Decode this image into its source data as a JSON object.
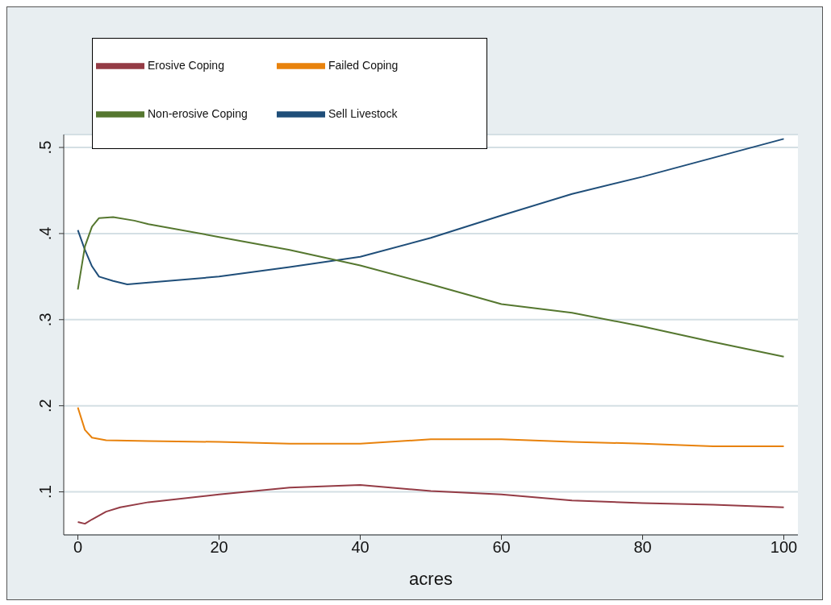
{
  "chart_data": {
    "type": "line",
    "xlabel": "acres",
    "xlim": [
      -2,
      102
    ],
    "xticks": [
      0,
      20,
      40,
      60,
      80,
      100
    ],
    "ylim": [
      0.05,
      0.515
    ],
    "yticks": [
      {
        "value": 0.1,
        "label": ".1"
      },
      {
        "value": 0.2,
        "label": ".2"
      },
      {
        "value": 0.3,
        "label": ".3"
      },
      {
        "value": 0.4,
        "label": ".4"
      },
      {
        "value": 0.5,
        "label": ".5"
      }
    ],
    "grid": "y",
    "legend": "top left",
    "x": [
      0,
      1,
      2,
      3,
      5,
      7,
      10,
      20,
      30,
      40,
      50,
      60,
      70,
      80,
      90,
      100
    ],
    "series": [
      {
        "name": "Sell Livestock",
        "color": "#1f4e79",
        "values": [
          0.404,
          0.381,
          0.362,
          0.35,
          0.345,
          0.341,
          0.343,
          0.35,
          0.361,
          0.373,
          0.395,
          0.421,
          0.446,
          0.466,
          0.488,
          0.51
        ]
      },
      {
        "name": "Erosive Coping",
        "color": "#943b45",
        "x": [
          0,
          1,
          2,
          4,
          6,
          10,
          20,
          30,
          40,
          50,
          60,
          70,
          80,
          90,
          100
        ],
        "values": [
          0.065,
          0.063,
          0.068,
          0.077,
          0.082,
          0.088,
          0.097,
          0.105,
          0.108,
          0.101,
          0.097,
          0.09,
          0.087,
          0.085,
          0.082
        ]
      },
      {
        "name": "Non-erosive Coping",
        "color": "#55772f",
        "x": [
          0,
          1,
          2,
          3,
          5,
          8,
          10,
          20,
          30,
          40,
          50,
          60,
          70,
          80,
          90,
          100
        ],
        "values": [
          0.335,
          0.385,
          0.408,
          0.418,
          0.419,
          0.415,
          0.411,
          0.396,
          0.381,
          0.363,
          0.341,
          0.318,
          0.308,
          0.292,
          0.274,
          0.257
        ]
      },
      {
        "name": "Failed Coping",
        "color": "#e8820c",
        "x": [
          0,
          1,
          2,
          4,
          10,
          20,
          30,
          40,
          50,
          60,
          70,
          80,
          90,
          100
        ],
        "values": [
          0.198,
          0.172,
          0.163,
          0.16,
          0.159,
          0.158,
          0.156,
          0.156,
          0.161,
          0.161,
          0.158,
          0.156,
          0.153,
          0.153
        ]
      }
    ]
  }
}
